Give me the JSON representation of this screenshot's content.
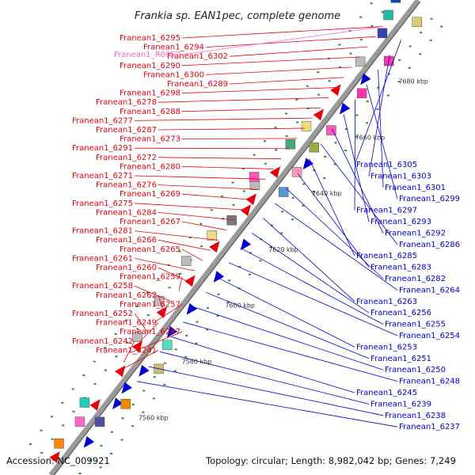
{
  "title": "Frankia sp. EAN1pec, complete genome",
  "accession": "Accession: NC_009921",
  "topology": "Topology: circular; Length: 8,982,042 bp; Genes: 7,249",
  "kbp_marks": [
    "7680 kbp",
    "7660 kbp",
    "7640 kbp",
    "7620 kbp",
    "7600 kbp",
    "7580 kbp",
    "7560 kbp"
  ],
  "colors": {
    "forward": "#e8000b",
    "reverse": "#0000d0",
    "rna": "#ff66cc",
    "backbone": "#9a9a9a",
    "tick": "#2a8f2a"
  },
  "forward_labels": [
    "Franean1_6295",
    "Franean1_6294",
    "Franean1_6302",
    "Franean1_6290",
    "Franean1_6300",
    "Franean1_6289",
    "Franean1_6298",
    "Franean1_6278",
    "Franean1_6288",
    "Franean1_6277",
    "Franean1_6287",
    "Franean1_6273",
    "Franean1_6291",
    "Franean1_6272",
    "Franean1_6280",
    "Franean1_6271",
    "Franean1_6276",
    "Franean1_6269",
    "Franean1_6275",
    "Franean1_6284",
    "Franean1_6267",
    "Franean1_6281",
    "Franean1_6266",
    "Franean1_6265",
    "Franean1_6261",
    "Franean1_6260",
    "Franean1_6259",
    "Franean1_6258",
    "Franean1_6262",
    "Franean1_6257",
    "Franean1_6252",
    "Franean1_6249",
    "Franean1_6247",
    "Franean1_6242",
    "Franean1_6241"
  ],
  "rna_labels": [
    "Franean1_R0052"
  ],
  "reverse_labels": [
    "Franean1_6305",
    "Franean1_6303",
    "Franean1_6301",
    "Franean1_6299",
    "Franean1_6297",
    "Franean1_6293",
    "Franean1_6292",
    "Franean1_6286",
    "Franean1_6285",
    "Franean1_6283",
    "Franean1_6282",
    "Franean1_6264",
    "Franean1_6263",
    "Franean1_6256",
    "Franean1_6255",
    "Franean1_6254",
    "Franean1_6253",
    "Franean1_6251",
    "Franean1_6250",
    "Franean1_6248",
    "Franean1_6245",
    "Franean1_6239",
    "Franean1_6238",
    "Franean1_6237"
  ]
}
